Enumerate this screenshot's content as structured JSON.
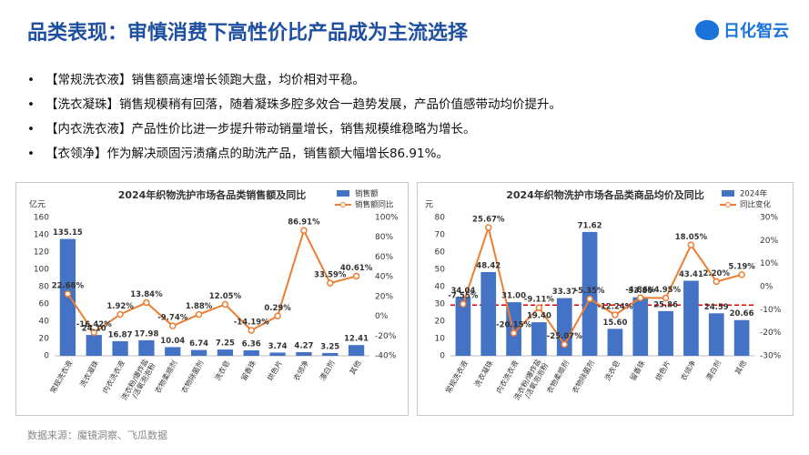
{
  "header": {
    "title": "品类表现：审慎消费下高性价比产品成为主流选择",
    "logo": "日化智云"
  },
  "bullets": [
    "【常规洗衣液】销售额高速增长领跑大盘，均价相对平稳。",
    "【洗衣凝珠】销售规模稍有回落，随着凝珠多腔多效合一趋势发展，产品价值感带动均价提升。",
    "【内衣洗衣液】产品性价比进一步提升带动销量增长，销售规模维稳略为增长。",
    "【衣领净】作为解决顽固污渍痛点的助洗产品，销售额大幅增长86.91%。"
  ],
  "source": "数据来源：魔镜洞察、飞瓜数据",
  "chart_data": [
    {
      "type": "bar-line",
      "title": "2024年织物洗护市场各品类销售额及同比",
      "y_label": "亿元",
      "categories": [
        "常规洗衣液",
        "洗衣凝珠",
        "内衣洗衣液",
        "洗衣粉/爆炸盐/活氧泡泡粉",
        "衣物柔顺剂",
        "衣物除菌剂",
        "洗衣皂",
        "留香珠",
        "烘色片",
        "衣领净",
        "漂白剂",
        "其他"
      ],
      "series": [
        {
          "name": "销售额",
          "kind": "bar",
          "color": "#4472c4",
          "label_color": "#222222",
          "values": [
            135.15,
            24.1,
            16.87,
            17.98,
            10.04,
            6.74,
            7.25,
            6.36,
            3.74,
            4.27,
            3.25,
            12.41
          ],
          "value_labels": [
            "135.15",
            "24.10",
            "16.87",
            "17.98",
            "10.04",
            "6.74",
            "7.25",
            "6.36",
            "3.74",
            "4.27",
            "3.25",
            "12.41"
          ]
        },
        {
          "name": "销售额同比",
          "kind": "line",
          "axis": "y2",
          "color": "#ed7d31",
          "label_color": "#c00000",
          "values": [
            22.68,
            -16.42,
            1.92,
            13.84,
            -9.74,
            1.88,
            12.05,
            -14.19,
            0.29,
            86.91,
            33.59,
            40.61
          ],
          "value_labels": [
            "22.68%",
            "-16.42%",
            "1.92%",
            "13.84%",
            "-9.74%",
            "1.88%",
            "12.05%",
            "-14.19%",
            "0.29%",
            "86.91%",
            "33.59%",
            "40.61%"
          ]
        }
      ],
      "ylim": [
        0,
        160
      ],
      "yticks": [
        0,
        20,
        40,
        60,
        80,
        100,
        120,
        140,
        160
      ],
      "y2lim": [
        -40,
        100
      ],
      "y2ticks": [
        {
          "value": -40,
          "label": "-40%"
        },
        {
          "value": -20,
          "label": "-20%"
        },
        {
          "value": 0,
          "label": "0%"
        },
        {
          "value": 20,
          "label": "20%"
        },
        {
          "value": 40,
          "label": "40%"
        },
        {
          "value": 60,
          "label": "60%"
        },
        {
          "value": 80,
          "label": "80%"
        },
        {
          "value": 100,
          "label": "100%"
        }
      ],
      "legend": "top-right",
      "grid": false
    },
    {
      "type": "bar-line",
      "title": "2024年织物洗护市场各品类商品均价及同比",
      "y_label": "元",
      "categories": [
        "常规洗衣液",
        "洗衣凝珠",
        "内衣洗衣液",
        "洗衣粉/爆炸盐/活氧泡泡粉",
        "衣物柔顺剂",
        "衣物除菌剂",
        "洗衣皂",
        "留香珠",
        "烘色片",
        "衣领净",
        "漂白剂",
        "其他"
      ],
      "series": [
        {
          "name": "2024年",
          "kind": "bar",
          "color": "#4472c4",
          "label_color": "#1f4e9c",
          "values": [
            34.04,
            48.42,
            31.0,
            19.4,
            33.37,
            71.62,
            15.6,
            33.86,
            25.86,
            43.41,
            24.59,
            20.66
          ],
          "value_labels": [
            "34.04",
            "48.42",
            "31.00",
            "19.40",
            "33.37",
            "71.62",
            "15.60",
            "33.86",
            "25.86",
            "43.41",
            "24.59",
            "20.66"
          ]
        },
        {
          "name": "同比变化",
          "kind": "line",
          "axis": "y2",
          "color": "#ed7d31",
          "label_color": "#c00000",
          "values": [
            -7.55,
            25.67,
            -20.15,
            -9.11,
            -25.07,
            -5.35,
            -12.24,
            -4.86,
            -4.95,
            18.05,
            2.2,
            5.19
          ],
          "value_labels": [
            "-7.55%",
            "25.67%",
            "-20.15%",
            "-9.11%",
            "-25.07%",
            "-5.35%",
            "-12.24%",
            "-4.86%",
            "-4.95%",
            "18.05%",
            "2.20%",
            "5.19%"
          ]
        }
      ],
      "ylim": [
        0,
        80
      ],
      "yticks": [
        0,
        10,
        20,
        30,
        40,
        50,
        60,
        70,
        80
      ],
      "y2lim": [
        -30,
        30
      ],
      "y2ticks": [
        {
          "value": -30,
          "label": "-30%"
        },
        {
          "value": -20,
          "label": "-20%"
        },
        {
          "value": -10,
          "label": "-10%"
        },
        {
          "value": 0,
          "label": "0%"
        },
        {
          "value": 10,
          "label": "10%"
        },
        {
          "value": 20,
          "label": "20%"
        },
        {
          "value": 30,
          "label": "30%"
        }
      ],
      "hline": {
        "value": -8,
        "axis": "y2",
        "color": "#e00000"
      },
      "legend": "top-right",
      "grid": false
    }
  ]
}
